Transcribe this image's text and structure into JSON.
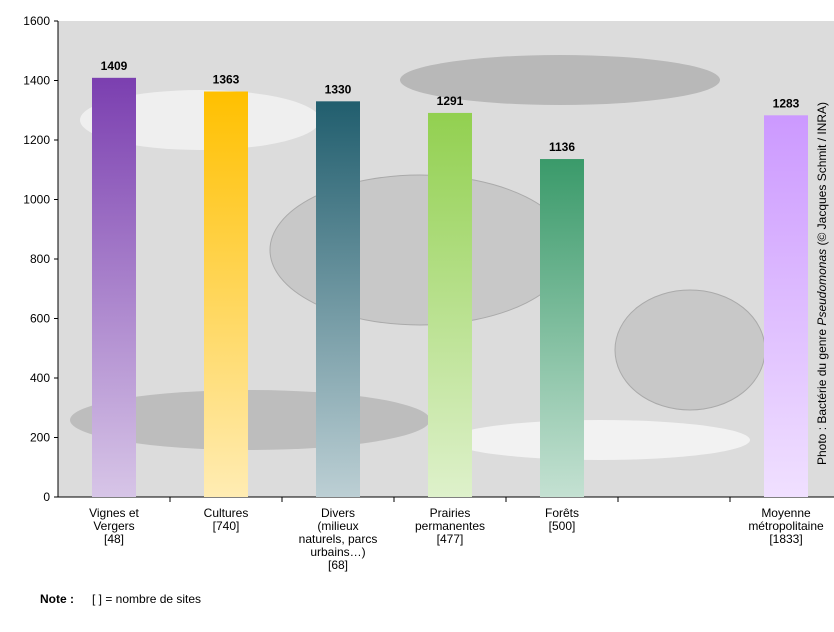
{
  "chart_data": {
    "type": "bar",
    "categories": [
      [
        "Vignes et",
        "Vergers",
        "[48]"
      ],
      [
        "Cultures",
        "[740]"
      ],
      [
        "Divers",
        "(milieux",
        "naturels, parcs",
        "urbains…)",
        "[68]"
      ],
      [
        "Prairies",
        "permanentes",
        "[477]"
      ],
      [
        "Forêts",
        "[500]"
      ],
      null,
      [
        "Moyenne",
        "métropolitaine",
        "[1833]"
      ]
    ],
    "values": [
      1409,
      1363,
      1330,
      1291,
      1136,
      null,
      1283
    ],
    "colors": [
      "#7b3fb0",
      "#ffc000",
      "#215e6e",
      "#92d050",
      "#3a9a6a",
      null,
      "#cc99ff"
    ],
    "ylim": [
      0,
      1600
    ],
    "yticks": [
      0,
      200,
      400,
      600,
      800,
      1000,
      1200,
      1400,
      1600
    ],
    "grid": false,
    "note": {
      "label": "Note :",
      "text": "[ ] = nombre de sites"
    },
    "credit": {
      "prefix": "Photo : Bactérie du genre ",
      "italic": "Pseudomonas",
      "suffix": " (© Jacques Schmit / INRA)"
    }
  }
}
